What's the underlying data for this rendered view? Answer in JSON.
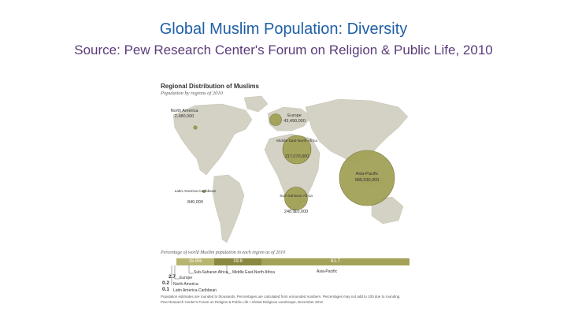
{
  "slide": {
    "title": "Global Muslim Population: Diversity",
    "source_label": "Source:",
    "source_text": " Pew Research Center's Forum on Religion & Public Life, 2010"
  },
  "figure": {
    "title": "Regional Distribution of Muslims",
    "subtitle": "Population by regions of 2010",
    "regions": [
      {
        "name": "North America",
        "population": "2,480,000"
      },
      {
        "name": "Europe",
        "population": "43,490,000"
      },
      {
        "name": "Middle East-North Africa",
        "population": "317,070,000"
      },
      {
        "name": "Asia-Pacific",
        "population": "985,530,000"
      },
      {
        "name": "Latin America-Caribbean",
        "population": "840,000"
      },
      {
        "name": "Sub-Saharan Africa",
        "population": "248,110,000"
      }
    ],
    "percent_title": "Percentage of world Muslim population in each region as of 2010",
    "percent_bars": [
      {
        "label": "15.5%",
        "region": "Sub-Saharan Africa"
      },
      {
        "label": "19.8",
        "region": "Middle East-North Africa"
      },
      {
        "label": "61.7",
        "region": "Asia-Pacific"
      }
    ],
    "small_shares": [
      {
        "value": "2.7",
        "region": "Europe"
      },
      {
        "value": "0.2",
        "region": "North America"
      },
      {
        "value": "0.1",
        "region": "Latin America-Caribbean"
      }
    ],
    "footnote": "Population estimates are rounded to thousands. Percentages are calculated from unrounded numbers. Percentages may not add to 100 due to rounding.",
    "credit": "Pew Research Center's Forum on Religion & Public Life • Global Religious Landscape, December 2012"
  },
  "colors": {
    "title": "#1f5fa6",
    "source": "#5b3b7a",
    "bubble": "#a3a258",
    "bubble_edge": "#6f6e2c",
    "land": "#d4d2c4"
  }
}
